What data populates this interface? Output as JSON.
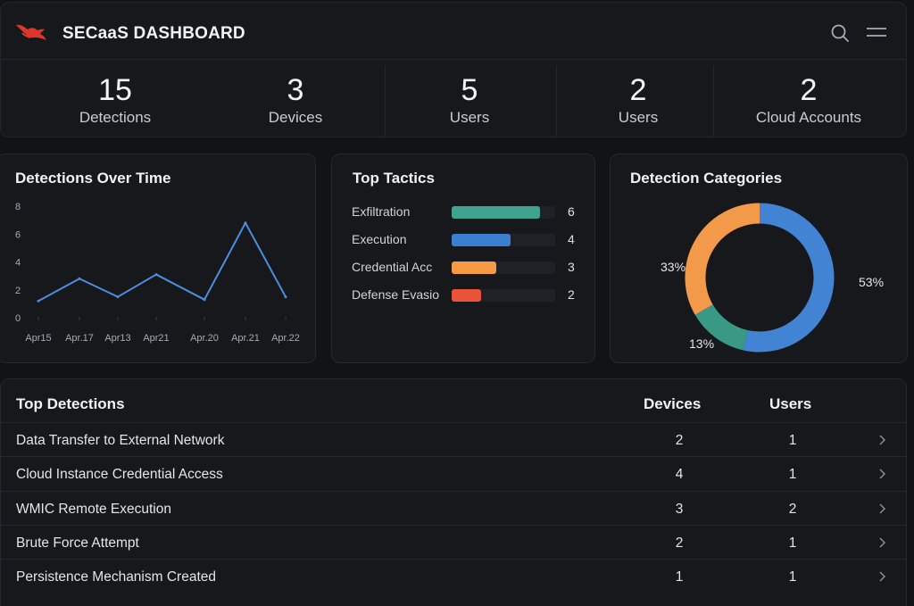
{
  "app": {
    "title": "SECaaS DASHBOARD"
  },
  "header": {
    "icons": [
      "search-icon",
      "menu-icon"
    ]
  },
  "stats": [
    {
      "value": "15",
      "label": "Detections"
    },
    {
      "value": "3",
      "label": "Devices"
    },
    {
      "value": "5",
      "label": "Users"
    },
    {
      "value": "2",
      "label": "Users"
    },
    {
      "value": "2",
      "label": "Cloud Accounts"
    }
  ],
  "detections_over_time": {
    "title": "Detections Over Time"
  },
  "top_tactics": {
    "title": "Top Tactics",
    "items": [
      {
        "label": "Exfiltration",
        "value": "6",
        "color": "#3fa38f"
      },
      {
        "label": "Execution",
        "value": "4",
        "color": "#3c7fd0"
      },
      {
        "label": "Credential Acc",
        "value": "3",
        "color": "#f59a42"
      },
      {
        "label": "Defense Evasio",
        "value": "2",
        "color": "#e8533a"
      }
    ]
  },
  "detection_categories": {
    "title": "Detection Categories"
  },
  "chart_data": [
    {
      "type": "line",
      "title": "Detections Over Time",
      "x": [
        "Apr15",
        "Apr.17",
        "Apr13",
        "Apr21",
        "Apr.20",
        "Apr.21",
        "Apr.22"
      ],
      "y_ticks": [
        "0",
        "2",
        "4",
        "6",
        "8"
      ],
      "ylim": [
        0,
        8
      ],
      "series": [
        {
          "values": [
            1.2,
            2.8,
            1.5,
            3.1,
            1.3,
            6.8,
            1.5
          ]
        }
      ],
      "color": "#4a8fe0",
      "grid": false
    },
    {
      "type": "pie",
      "title": "Detection Categories",
      "donut": true,
      "slices": [
        {
          "label": "53%",
          "value": 53,
          "color": "#4383d4"
        },
        {
          "label": "13%",
          "value": 13,
          "color": "#3a9985"
        },
        {
          "label": "33%",
          "value": 33,
          "color": "#f3994a"
        }
      ]
    }
  ],
  "top_detections": {
    "title": "Top Detections",
    "col_devices": "Devices",
    "col_users": "Users",
    "rows": [
      {
        "name": "Data Transfer to External Network",
        "devices": "2",
        "users": "1"
      },
      {
        "name": "Cloud Instance Credential Access",
        "devices": "4",
        "users": "1"
      },
      {
        "name": "WMIC Remote Execution",
        "devices": "3",
        "users": "2"
      },
      {
        "name": "Brute Force Attempt",
        "devices": "2",
        "users": "1"
      },
      {
        "name": "Persistence Mechanism Created",
        "devices": "1",
        "users": "1"
      }
    ]
  }
}
